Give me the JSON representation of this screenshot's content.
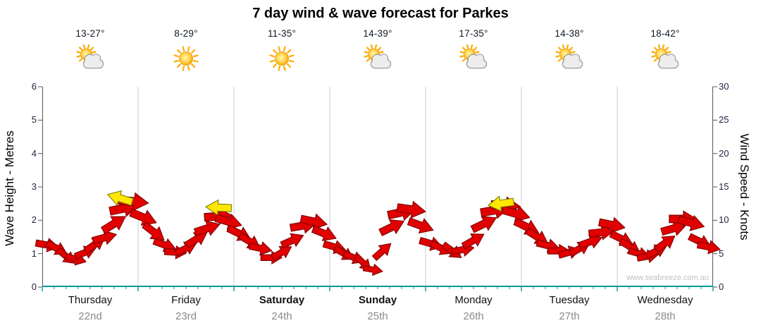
{
  "title": "7 day wind & wave forecast for Parkes",
  "watermark": "www.seabreeze.com.au",
  "axes": {
    "left_label": "Wave Height - Metres",
    "right_label": "Wind Speed - Knots",
    "left_ticks": [
      0,
      1,
      2,
      3,
      4,
      5,
      6
    ],
    "right_ticks": [
      0,
      5,
      10,
      15,
      20,
      25,
      30
    ]
  },
  "colors": {
    "arrow_red": "#e10000",
    "arrow_red_stroke": "#7d0000",
    "arrow_yellow": "#ffe800",
    "arrow_yellow_stroke": "#7d7d00",
    "axis_teal": "#009b9b",
    "grid_gray": "#cccccc",
    "axis_gray": "#555555"
  },
  "chart_data": {
    "type": "scatter",
    "title": "7 day wind & wave forecast for Parkes",
    "x_axis": "time (7 days)",
    "y_left": {
      "label": "Wave Height - Metres",
      "range": [
        0,
        6
      ]
    },
    "y_right": {
      "label": "Wind Speed - Knots",
      "range": [
        0,
        30
      ]
    },
    "legend": "red arrows = wind speed/direction, yellow arrows = gust markers",
    "days": [
      {
        "name": "Thursday",
        "date": "22nd",
        "temp": "13-27°",
        "icon": "partly-cloudy",
        "weekend": false,
        "wind_knots_angles": [
          [
            6.3,
            10
          ],
          [
            5.8,
            28
          ],
          [
            4.6,
            40
          ],
          [
            4.2,
            15
          ],
          [
            5.2,
            -22
          ],
          [
            6.4,
            -35
          ],
          [
            7.4,
            -15
          ],
          [
            9.5,
            -32
          ],
          [
            11.8,
            -12
          ],
          [
            12.8,
            6
          ]
        ]
      },
      {
        "name": "Friday",
        "date": "23rd",
        "temp": "8-29°",
        "icon": "sunny",
        "weekend": false,
        "wind_knots_angles": [
          [
            10.4,
            22
          ],
          [
            8.2,
            38
          ],
          [
            6.3,
            20
          ],
          [
            5.2,
            4
          ],
          [
            5.8,
            -26
          ],
          [
            7.2,
            -32
          ],
          [
            8.8,
            -18
          ],
          [
            10.6,
            -4
          ],
          [
            9.8,
            16
          ]
        ]
      },
      {
        "name": "Saturday",
        "date": "24th",
        "temp": "11-35°",
        "icon": "sunny",
        "weekend": true,
        "wind_knots_angles": [
          [
            8.0,
            26
          ],
          [
            6.8,
            32
          ],
          [
            5.8,
            12
          ],
          [
            4.4,
            0
          ],
          [
            5.2,
            -30
          ],
          [
            7.0,
            -24
          ],
          [
            9.2,
            -10
          ],
          [
            9.8,
            12
          ],
          [
            8.0,
            22
          ]
        ]
      },
      {
        "name": "Sunday",
        "date": "25th",
        "temp": "14-39°",
        "icon": "partly-cloudy",
        "weekend": true,
        "wind_knots_angles": [
          [
            6.0,
            16
          ],
          [
            5.0,
            30
          ],
          [
            4.4,
            22
          ],
          [
            3.6,
            44
          ],
          [
            2.6,
            10
          ],
          [
            5.4,
            -42
          ],
          [
            9.0,
            -26
          ],
          [
            11.2,
            -12
          ],
          [
            11.6,
            8
          ],
          [
            9.2,
            20
          ]
        ]
      },
      {
        "name": "Monday",
        "date": "26th",
        "temp": "17-35°",
        "icon": "partly-cloudy",
        "weekend": false,
        "wind_knots_angles": [
          [
            6.5,
            16
          ],
          [
            5.8,
            26
          ],
          [
            5.4,
            36
          ],
          [
            5.6,
            -10
          ],
          [
            7.0,
            -30
          ],
          [
            9.5,
            -26
          ],
          [
            11.5,
            -10
          ],
          [
            12.2,
            4
          ],
          [
            11.0,
            16
          ]
        ]
      },
      {
        "name": "Tuesday",
        "date": "27th",
        "temp": "14-38°",
        "icon": "partly-cloudy",
        "weekend": false,
        "wind_knots_angles": [
          [
            9.0,
            26
          ],
          [
            7.5,
            32
          ],
          [
            6.2,
            14
          ],
          [
            5.4,
            0
          ],
          [
            5.2,
            -16
          ],
          [
            5.8,
            -30
          ],
          [
            6.8,
            -20
          ],
          [
            8.2,
            -6
          ],
          [
            9.3,
            12
          ]
        ]
      },
      {
        "name": "Wednesday",
        "date": "28th",
        "temp": "18-42°",
        "icon": "partly-cloudy",
        "weekend": false,
        "wind_knots_angles": [
          [
            7.2,
            26
          ],
          [
            6.0,
            32
          ],
          [
            5.0,
            16
          ],
          [
            4.6,
            -10
          ],
          [
            5.4,
            -26
          ],
          [
            6.6,
            -36
          ],
          [
            8.8,
            -16
          ],
          [
            10.2,
            0
          ],
          [
            9.6,
            16
          ],
          [
            6.8,
            26
          ],
          [
            6.0,
            12
          ]
        ]
      }
    ],
    "gust_arrows_yellow": [
      {
        "x_fraction": 0.116,
        "knots": 13.3,
        "angle": 197
      },
      {
        "x_fraction": 0.263,
        "knots": 11.9,
        "angle": 183
      },
      {
        "x_fraction": 0.684,
        "knots": 12.5,
        "angle": 172
      }
    ]
  }
}
